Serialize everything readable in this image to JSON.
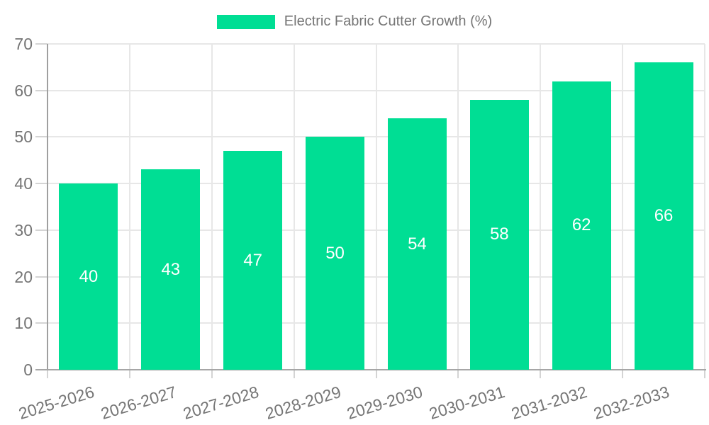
{
  "legend": {
    "label": "Electric Fabric Cutter Growth (%)"
  },
  "chart_data": {
    "type": "bar",
    "title": "Electric Fabric Cutter Growth (%)",
    "categories": [
      "2025-2026",
      "2026-2027",
      "2027-2028",
      "2028-2029",
      "2029-2030",
      "2030-2031",
      "2031-2032",
      "2032-2033"
    ],
    "values": [
      40,
      43,
      47,
      50,
      54,
      58,
      62,
      66
    ],
    "xlabel": "",
    "ylabel": "",
    "ylim": [
      0,
      70
    ],
    "yticks": [
      0,
      10,
      20,
      30,
      40,
      50,
      60,
      70
    ],
    "grid": true,
    "legend_position": "top",
    "colors": {
      "bar": "#00de94",
      "value_label": "#ffffff",
      "axis_text": "#757575",
      "grid_line": "#e7e7e7",
      "axis_line": "#a6a6a6",
      "tick_line": "#d4d4d4",
      "background": "#ffffff"
    }
  }
}
